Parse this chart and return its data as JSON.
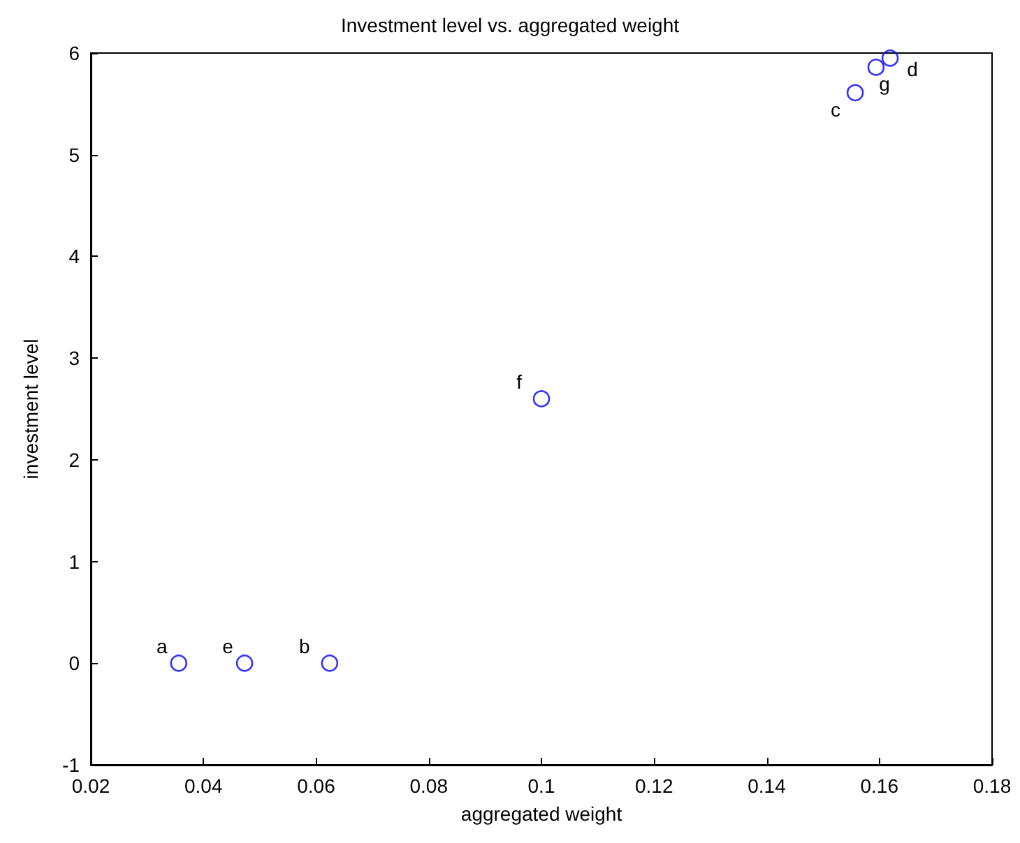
{
  "chart_data": {
    "type": "scatter",
    "title": "Investment level vs. aggregated weight",
    "xlabel": "aggregated weight",
    "ylabel": "investment level",
    "x": [
      0.0356,
      0.0624,
      0.1557,
      0.1619,
      0.0473,
      0.1,
      0.1594
    ],
    "series": [
      {
        "color": "#0000ff",
        "values": [
          0,
          0,
          5.61,
          5.95,
          0,
          2.6,
          5.86
        ]
      }
    ],
    "annotations": [
      {
        "text": "a",
        "x": 0.0356,
        "y": 0
      },
      {
        "text": "b",
        "x": 0.0624,
        "y": 0
      },
      {
        "text": "c",
        "x": 0.1557,
        "y": 5.61
      },
      {
        "text": "d",
        "x": 0.1619,
        "y": 5.95
      },
      {
        "text": "e",
        "x": 0.0473,
        "y": 0
      },
      {
        "text": "f",
        "x": 0.1,
        "y": 2.6
      },
      {
        "text": "g",
        "x": 0.1594,
        "y": 5.86
      }
    ],
    "xlim": [
      0.02,
      0.18
    ],
    "xticks": [
      0.02,
      0.04,
      0.06,
      0.08,
      0.1,
      0.12,
      0.14,
      0.16,
      0.18
    ],
    "ylim": [
      -1,
      6
    ],
    "yticks": [
      -1,
      0,
      1,
      2,
      3,
      4,
      5,
      6
    ],
    "marker": "circle",
    "grid": false
  }
}
